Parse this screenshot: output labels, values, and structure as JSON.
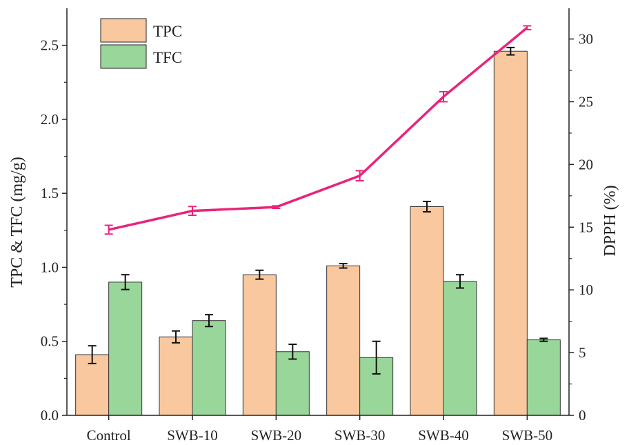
{
  "chart_data": {
    "type": "bar",
    "categories": [
      "Control",
      "SWB-10",
      "SWB-20",
      "SWB-30",
      "SWB-40",
      "SWB-50"
    ],
    "series": [
      {
        "name": "TPC",
        "axis": "left",
        "type": "bar",
        "color": "#F9C89E",
        "values": [
          0.41,
          0.53,
          0.95,
          1.01,
          1.41,
          2.46
        ],
        "errors": [
          0.06,
          0.04,
          0.03,
          0.015,
          0.035,
          0.025
        ]
      },
      {
        "name": "TFC",
        "axis": "left",
        "type": "bar",
        "color": "#99D69A",
        "values": [
          0.9,
          0.64,
          0.43,
          0.39,
          0.905,
          0.51
        ],
        "errors": [
          0.05,
          0.04,
          0.05,
          0.11,
          0.045,
          0.01
        ]
      },
      {
        "axis": "right",
        "type": "line",
        "color": "#E8247A",
        "values": [
          14.8,
          16.3,
          16.6,
          19.1,
          25.4,
          30.9
        ],
        "errors": [
          0.35,
          0.35,
          0.1,
          0.4,
          0.4,
          0.15
        ]
      }
    ],
    "ylabel": "TPC & TFC (mg/g)",
    "y2label": "DPPH (%)",
    "ylim": [
      0,
      2.75
    ],
    "y2lim": [
      0,
      32.45
    ],
    "yticks": [
      "0.0",
      "0.5",
      "1.0",
      "1.5",
      "2.0",
      "2.5"
    ],
    "y2ticks": [
      "0",
      "5",
      "10",
      "15",
      "20",
      "25",
      "30"
    ],
    "legend": "top-left",
    "grid": false
  }
}
